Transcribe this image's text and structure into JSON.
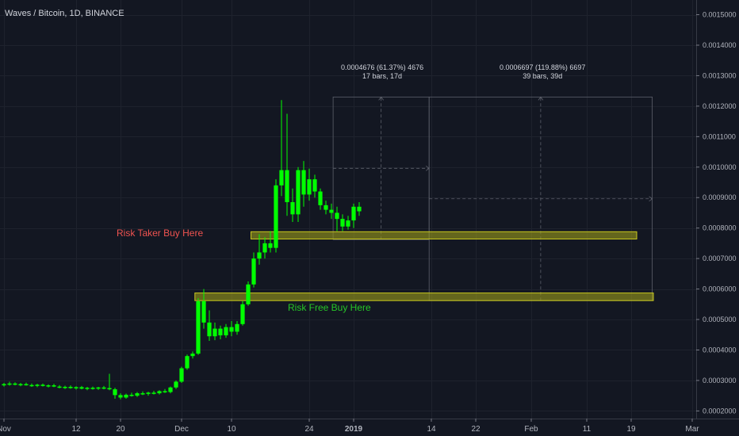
{
  "title": "Waves / Bitcoin, 1D, BINANCE",
  "colors": {
    "background": "#131722",
    "candle_up": "#00ff00",
    "candle_down": "#00ff00",
    "zone": "#9b9b1a",
    "risk_taker": "#ef5350",
    "risk_free": "#26c627"
  },
  "annotations": {
    "risk_taker": "Risk Taker Buy Here",
    "risk_free": "Risk Free Buy Here",
    "measure1_line1": "0.0004676 (61.37%) 4676",
    "measure1_line2": "17 bars, 17d",
    "measure2_line1": "0.0006697 (119.88%) 6697",
    "measure2_line2": "39 bars, 39d"
  },
  "chart_data": {
    "type": "candlestick",
    "ylim": [
      0.000175,
      0.00153
    ],
    "y_ticks": [
      "0.0015000",
      "0.0014000",
      "0.0013000",
      "0.0012000",
      "0.0011000",
      "0.0010000",
      "0.0009000",
      "0.0008000",
      "0.0007000",
      "0.0006000",
      "0.0005000",
      "0.0004000",
      "0.0003000",
      "0.0002000"
    ],
    "y_tick_values": [
      0.0015,
      0.0014,
      0.0013,
      0.0012,
      0.0011,
      0.001,
      0.0009,
      0.0008,
      0.0007,
      0.0006,
      0.0005,
      0.0004,
      0.0003,
      0.0002
    ],
    "x_tick_labels": [
      "Nov",
      "12",
      "20",
      "Dec",
      "10",
      "24",
      "2019",
      "14",
      "22",
      "Feb",
      "11",
      "19",
      "Mar"
    ],
    "x_tick_index": [
      0,
      13,
      21,
      32,
      41,
      55,
      63,
      77,
      85,
      95,
      105,
      113,
      124
    ],
    "candles": [
      [
        0.000284,
        0.000292,
        0.00028,
        0.000288
      ],
      [
        0.000288,
        0.000296,
        0.000283,
        0.00029
      ],
      [
        0.00029,
        0.000294,
        0.000284,
        0.000286
      ],
      [
        0.000286,
        0.000292,
        0.000281,
        0.000288
      ],
      [
        0.000288,
        0.000293,
        0.000283,
        0.000285
      ],
      [
        0.000285,
        0.00029,
        0.000279,
        0.000283
      ],
      [
        0.000283,
        0.000289,
        0.000278,
        0.000286
      ],
      [
        0.000286,
        0.00029,
        0.00028,
        0.000282
      ],
      [
        0.000282,
        0.000287,
        0.000277,
        0.000284
      ],
      [
        0.000284,
        0.000289,
        0.000278,
        0.00028
      ],
      [
        0.00028,
        0.000285,
        0.000274,
        0.000277
      ],
      [
        0.000277,
        0.000283,
        0.000272,
        0.000279
      ],
      [
        0.000279,
        0.000284,
        0.000273,
        0.000275
      ],
      [
        0.000275,
        0.000281,
        0.00027,
        0.000278
      ],
      [
        0.000278,
        0.000282,
        0.000271,
        0.000273
      ],
      [
        0.000273,
        0.000279,
        0.000268,
        0.000276
      ],
      [
        0.000276,
        0.00028,
        0.00027,
        0.000274
      ],
      [
        0.000274,
        0.000279,
        0.000269,
        0.000277
      ],
      [
        0.000277,
        0.000282,
        0.000271,
        0.000275
      ],
      [
        0.000275,
        0.000322,
        0.000268,
        0.000271
      ],
      [
        0.000271,
        0.000276,
        0.00024,
        0.000252
      ],
      [
        0.000252,
        0.000258,
        0.000238,
        0.000244
      ],
      [
        0.000244,
        0.000257,
        0.00024,
        0.000253
      ],
      [
        0.000253,
        0.00026,
        0.000247,
        0.00025
      ],
      [
        0.00025,
        0.000262,
        0.000246,
        0.000258
      ],
      [
        0.000258,
        0.000264,
        0.000252,
        0.000256
      ],
      [
        0.000256,
        0.000263,
        0.00025,
        0.00026
      ],
      [
        0.00026,
        0.000266,
        0.000254,
        0.000258
      ],
      [
        0.000258,
        0.000268,
        0.000254,
        0.000265
      ],
      [
        0.000265,
        0.000272,
        0.000259,
        0.000262
      ],
      [
        0.000262,
        0.00028,
        0.000258,
        0.000277
      ],
      [
        0.000277,
        0.0003,
        0.000272,
        0.000296
      ],
      [
        0.000296,
        0.000345,
        0.000292,
        0.00034
      ],
      [
        0.00034,
        0.000385,
        0.000335,
        0.00038
      ],
      [
        0.00038,
        0.000395,
        0.000372,
        0.000388
      ],
      [
        0.000388,
        0.00057,
        0.000384,
        0.00056
      ],
      [
        0.00056,
        0.0006,
        0.00047,
        0.00049
      ],
      [
        0.00049,
        0.00053,
        0.00043,
        0.000445
      ],
      [
        0.000445,
        0.00049,
        0.000432,
        0.00047
      ],
      [
        0.00047,
        0.00048,
        0.000435,
        0.000448
      ],
      [
        0.000448,
        0.000485,
        0.00044,
        0.000475
      ],
      [
        0.000475,
        0.000495,
        0.000445,
        0.00046
      ],
      [
        0.00046,
        0.000495,
        0.00045,
        0.000485
      ],
      [
        0.000485,
        0.00056,
        0.00048,
        0.00055
      ],
      [
        0.00055,
        0.000625,
        0.000545,
        0.000615
      ],
      [
        0.000615,
        0.00072,
        0.000605,
        0.0007
      ],
      [
        0.0007,
        0.00078,
        0.00068,
        0.00072
      ],
      [
        0.00072,
        0.00077,
        0.0007,
        0.00075
      ],
      [
        0.00075,
        0.00079,
        0.00072,
        0.000735
      ],
      [
        0.000735,
        0.00096,
        0.00072,
        0.00094
      ],
      [
        0.00094,
        0.00122,
        0.000905,
        0.00099
      ],
      [
        0.00099,
        0.001175,
        0.00084,
        0.000885
      ],
      [
        0.000885,
        0.00093,
        0.00082,
        0.000845
      ],
      [
        0.000845,
        0.001,
        0.00082,
        0.00099
      ],
      [
        0.00099,
        0.00102,
        0.00087,
        0.00091
      ],
      [
        0.00091,
        0.000995,
        0.00089,
        0.00096
      ],
      [
        0.00096,
        0.000975,
        0.0009,
        0.00092
      ],
      [
        0.00092,
        0.00093,
        0.00086,
        0.000875
      ],
      [
        0.000875,
        0.00089,
        0.000845,
        0.00086
      ],
      [
        0.00086,
        0.00088,
        0.00083,
        0.00085
      ],
      [
        0.00085,
        0.00087,
        0.00079,
        0.00083
      ],
      [
        0.00083,
        0.000845,
        0.00079,
        0.000805
      ],
      [
        0.000805,
        0.00084,
        0.000795,
        0.000825
      ],
      [
        0.000825,
        0.00088,
        0.0008,
        0.00087
      ],
      [
        0.00087,
        0.000885,
        0.00084,
        0.000855
      ]
    ]
  }
}
